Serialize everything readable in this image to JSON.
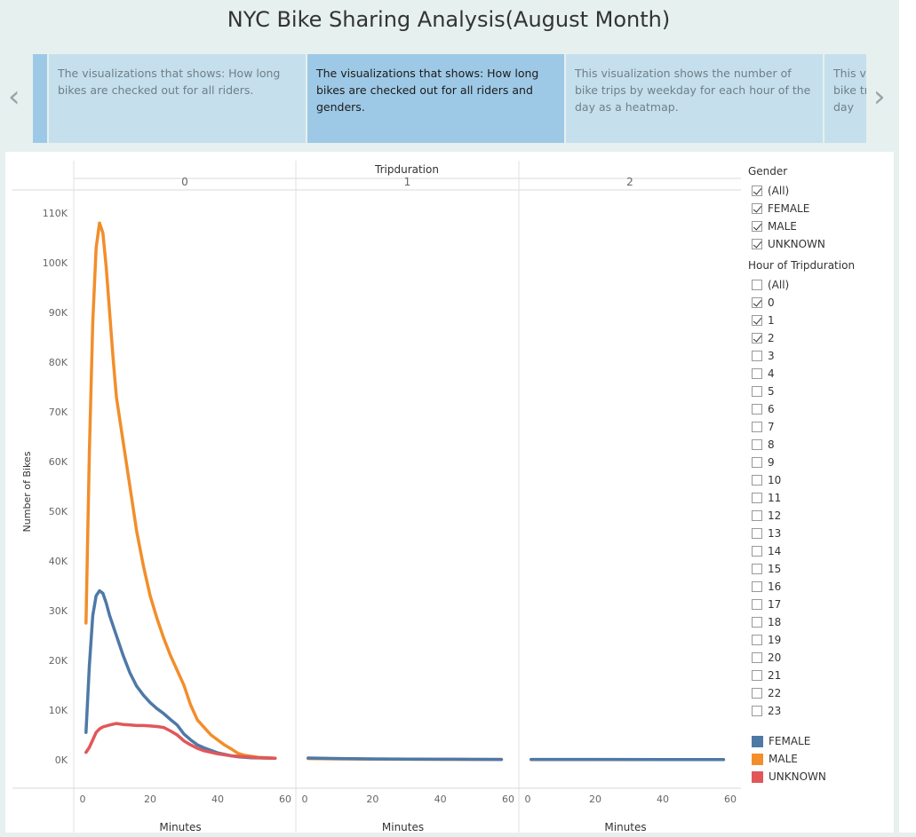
{
  "title": "NYC Bike Sharing Analysis(August Month)",
  "nav": {
    "prev": "‹",
    "next": "›"
  },
  "story_points": [
    {
      "text": "The visualizations that shows: How long bikes are checked out for all riders.",
      "active": false
    },
    {
      "text": "The visualizations that shows: How long bikes are checked out for all riders and genders.",
      "active": true
    },
    {
      "text": "This visualization shows the number of bike trips by weekday for each hour of the day as a heatmap.",
      "active": false
    },
    {
      "text": "This visualization shows the number of bike trips by weekday for each hour of the day",
      "active": false
    }
  ],
  "chart_data": {
    "type": "line",
    "column_header_title": "Tripduration",
    "panels": [
      "0",
      "1",
      "2"
    ],
    "ylabel": "Number of Bikes",
    "xlabel": "Minutes",
    "ylim": [
      0,
      115000
    ],
    "yticks": [
      "0K",
      "10K",
      "20K",
      "30K",
      "40K",
      "50K",
      "60K",
      "70K",
      "80K",
      "90K",
      "100K",
      "110K"
    ],
    "xticks": [
      "0",
      "20",
      "40",
      "60"
    ],
    "series": [
      {
        "name": "MALE",
        "color": "#f28e2b",
        "panels": [
          [
            [
              1,
              27500
            ],
            [
              2,
              62000
            ],
            [
              3,
              88000
            ],
            [
              4,
              103000
            ],
            [
              5,
              108000
            ],
            [
              6,
              106000
            ],
            [
              7,
              99000
            ],
            [
              8,
              90000
            ],
            [
              9,
              81000
            ],
            [
              10,
              73000
            ],
            [
              12,
              64000
            ],
            [
              14,
              55000
            ],
            [
              16,
              46000
            ],
            [
              18,
              39000
            ],
            [
              20,
              33000
            ],
            [
              22,
              28500
            ],
            [
              24,
              24500
            ],
            [
              26,
              21000
            ],
            [
              28,
              18000
            ],
            [
              30,
              15000
            ],
            [
              32,
              11000
            ],
            [
              34,
              8000
            ],
            [
              36,
              6500
            ],
            [
              38,
              5000
            ],
            [
              40,
              4000
            ],
            [
              42,
              3000
            ],
            [
              44,
              2200
            ],
            [
              46,
              1300
            ],
            [
              48,
              900
            ],
            [
              52,
              500
            ],
            [
              57,
              300
            ]
          ],
          [
            [
              1,
              250
            ],
            [
              10,
              180
            ],
            [
              20,
              120
            ],
            [
              30,
              100
            ],
            [
              40,
              90
            ],
            [
              50,
              80
            ],
            [
              58,
              70
            ]
          ],
          [
            [
              1,
              60
            ],
            [
              20,
              50
            ],
            [
              40,
              40
            ],
            [
              58,
              40
            ]
          ]
        ]
      },
      {
        "name": "FEMALE",
        "color": "#4e79a7",
        "panels": [
          [
            [
              1,
              5500
            ],
            [
              2,
              19000
            ],
            [
              3,
              29000
            ],
            [
              4,
              33000
            ],
            [
              5,
              34000
            ],
            [
              6,
              33500
            ],
            [
              7,
              31500
            ],
            [
              8,
              29000
            ],
            [
              9,
              27000
            ],
            [
              10,
              25000
            ],
            [
              12,
              21000
            ],
            [
              14,
              17500
            ],
            [
              16,
              14800
            ],
            [
              18,
              13000
            ],
            [
              20,
              11500
            ],
            [
              22,
              10300
            ],
            [
              24,
              9300
            ],
            [
              26,
              8100
            ],
            [
              28,
              7000
            ],
            [
              30,
              5200
            ],
            [
              32,
              4000
            ],
            [
              34,
              3000
            ],
            [
              36,
              2400
            ],
            [
              38,
              1900
            ],
            [
              40,
              1400
            ],
            [
              42,
              1100
            ],
            [
              44,
              800
            ],
            [
              46,
              600
            ],
            [
              50,
              400
            ],
            [
              57,
              300
            ]
          ],
          [
            [
              1,
              350
            ],
            [
              10,
              250
            ],
            [
              20,
              170
            ],
            [
              30,
              120
            ],
            [
              40,
              100
            ],
            [
              50,
              90
            ],
            [
              58,
              80
            ]
          ],
          [
            [
              1,
              80
            ],
            [
              20,
              70
            ],
            [
              40,
              60
            ],
            [
              58,
              60
            ]
          ]
        ]
      },
      {
        "name": "UNKNOWN",
        "color": "#e15759",
        "panels": [
          [
            [
              1,
              1500
            ],
            [
              2,
              2500
            ],
            [
              3,
              4000
            ],
            [
              4,
              5500
            ],
            [
              5,
              6200
            ],
            [
              6,
              6600
            ],
            [
              8,
              7000
            ],
            [
              10,
              7300
            ],
            [
              12,
              7100
            ],
            [
              14,
              7000
            ],
            [
              16,
              6900
            ],
            [
              18,
              6900
            ],
            [
              20,
              6800
            ],
            [
              22,
              6700
            ],
            [
              24,
              6500
            ],
            [
              26,
              5800
            ],
            [
              28,
              5000
            ],
            [
              30,
              3800
            ],
            [
              32,
              3000
            ],
            [
              34,
              2300
            ],
            [
              36,
              1800
            ],
            [
              38,
              1500
            ],
            [
              40,
              1200
            ],
            [
              42,
              1000
            ],
            [
              44,
              800
            ],
            [
              48,
              600
            ],
            [
              52,
              400
            ],
            [
              57,
              300
            ]
          ],
          [],
          []
        ]
      }
    ]
  },
  "filters": {
    "gender": {
      "title": "Gender",
      "options": [
        {
          "label": "(All)",
          "checked": true
        },
        {
          "label": "FEMALE",
          "checked": true
        },
        {
          "label": "MALE",
          "checked": true
        },
        {
          "label": "UNKNOWN",
          "checked": true
        }
      ]
    },
    "hour": {
      "title": "Hour of Tripduration",
      "options": [
        {
          "label": "(All)",
          "checked": false
        },
        {
          "label": "0",
          "checked": true
        },
        {
          "label": "1",
          "checked": true
        },
        {
          "label": "2",
          "checked": true
        },
        {
          "label": "3",
          "checked": false
        },
        {
          "label": "4",
          "checked": false
        },
        {
          "label": "5",
          "checked": false
        },
        {
          "label": "6",
          "checked": false
        },
        {
          "label": "7",
          "checked": false
        },
        {
          "label": "8",
          "checked": false
        },
        {
          "label": "9",
          "checked": false
        },
        {
          "label": "10",
          "checked": false
        },
        {
          "label": "11",
          "checked": false
        },
        {
          "label": "12",
          "checked": false
        },
        {
          "label": "13",
          "checked": false
        },
        {
          "label": "14",
          "checked": false
        },
        {
          "label": "15",
          "checked": false
        },
        {
          "label": "16",
          "checked": false
        },
        {
          "label": "17",
          "checked": false
        },
        {
          "label": "18",
          "checked": false
        },
        {
          "label": "19",
          "checked": false
        },
        {
          "label": "20",
          "checked": false
        },
        {
          "label": "21",
          "checked": false
        },
        {
          "label": "22",
          "checked": false
        },
        {
          "label": "23",
          "checked": false
        }
      ]
    }
  },
  "color_legend": [
    {
      "label": "FEMALE",
      "color": "#4e79a7"
    },
    {
      "label": "MALE",
      "color": "#f28e2b"
    },
    {
      "label": "UNKNOWN",
      "color": "#e15759"
    }
  ]
}
